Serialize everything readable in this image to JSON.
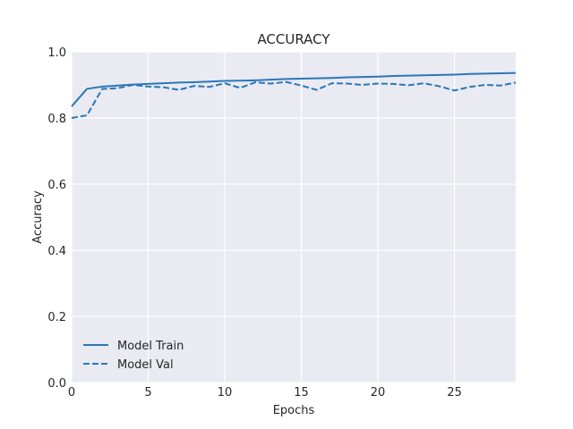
{
  "chart_data": {
    "type": "line",
    "title": "ACCURACY",
    "xlabel": "Epochs",
    "ylabel": "Accuracy",
    "xlim": [
      0,
      29
    ],
    "ylim": [
      0.0,
      1.0
    ],
    "xticks": [
      0,
      5,
      10,
      15,
      20,
      25
    ],
    "xtick_labels": [
      "0",
      "5",
      "10",
      "15",
      "20",
      "25"
    ],
    "yticks": [
      0.0,
      0.2,
      0.4,
      0.6,
      0.8,
      1.0
    ],
    "ytick_labels": [
      "0.0",
      "0.2",
      "0.4",
      "0.6",
      "0.8",
      "1.0"
    ],
    "grid": true,
    "legend_position": "lower-left",
    "x": [
      0,
      1,
      2,
      3,
      4,
      5,
      6,
      7,
      8,
      9,
      10,
      11,
      12,
      13,
      14,
      15,
      16,
      17,
      18,
      19,
      20,
      21,
      22,
      23,
      24,
      25,
      26,
      27,
      28,
      29
    ],
    "series": [
      {
        "name": "Model Train",
        "style": "solid",
        "color": "#2a78b6",
        "values": [
          0.835,
          0.888,
          0.895,
          0.898,
          0.901,
          0.903,
          0.905,
          0.907,
          0.908,
          0.91,
          0.912,
          0.913,
          0.914,
          0.916,
          0.918,
          0.919,
          0.92,
          0.921,
          0.923,
          0.924,
          0.925,
          0.927,
          0.928,
          0.929,
          0.93,
          0.931,
          0.933,
          0.934,
          0.935,
          0.936
        ]
      },
      {
        "name": "Model Val",
        "style": "dashed",
        "color": "#2a78b6",
        "values": [
          0.8,
          0.808,
          0.888,
          0.89,
          0.9,
          0.895,
          0.893,
          0.885,
          0.897,
          0.894,
          0.905,
          0.891,
          0.908,
          0.904,
          0.909,
          0.898,
          0.885,
          0.905,
          0.904,
          0.9,
          0.904,
          0.903,
          0.899,
          0.905,
          0.896,
          0.883,
          0.894,
          0.9,
          0.898,
          0.907
        ]
      }
    ]
  }
}
